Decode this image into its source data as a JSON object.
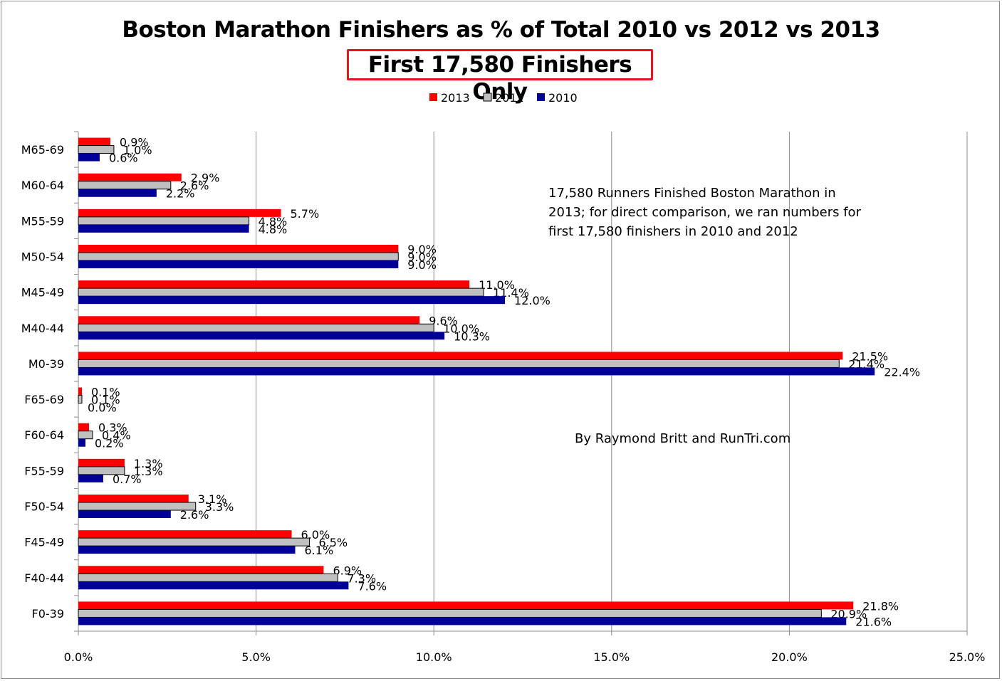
{
  "chart_data": {
    "type": "bar",
    "orientation": "horizontal",
    "title": "Boston Marathon Finishers as % of Total 2010 vs 2012 vs 2013",
    "subtitle": "First 17,580 Finishers Only",
    "categories": [
      "M65-69",
      "M60-64",
      "M55-59",
      "M50-54",
      "M45-49",
      "M40-44",
      "M0-39",
      "F65-69",
      "F60-64",
      "F55-59",
      "F50-54",
      "F45-49",
      "F40-44",
      "F0-39"
    ],
    "series": [
      {
        "name": "2013",
        "color": "#ff0000",
        "values": [
          0.9,
          2.9,
          5.7,
          9.0,
          11.0,
          9.6,
          21.5,
          0.1,
          0.3,
          1.3,
          3.1,
          6.0,
          6.9,
          21.8
        ],
        "labels": [
          "0.9%",
          "2.9%",
          "5.7%",
          "9.0%",
          "11.0%",
          "9.6%",
          "21.5%",
          "0.1%",
          "0.3%",
          "1.3%",
          "3.1%",
          "6.0%",
          "6.9%",
          "21.8%"
        ]
      },
      {
        "name": "2012",
        "color": "#c0c0c0",
        "values": [
          1.0,
          2.6,
          4.8,
          9.0,
          11.4,
          10.0,
          21.4,
          0.1,
          0.4,
          1.3,
          3.3,
          6.5,
          7.3,
          20.9
        ],
        "labels": [
          "1.0%",
          "2.6%",
          "4.8%",
          "9.0%",
          "11.4%",
          "10.0%",
          "21.4%",
          "0.1%",
          "0.4%",
          "1.3%",
          "3.3%",
          "6.5%",
          "7.3%",
          "20.9%"
        ]
      },
      {
        "name": "2010",
        "color": "#000099",
        "values": [
          0.6,
          2.2,
          4.8,
          9.0,
          12.0,
          10.3,
          22.4,
          0.0,
          0.2,
          0.7,
          2.6,
          6.1,
          7.6,
          21.6
        ],
        "labels": [
          "0.6%",
          "2.2%",
          "4.8%",
          "9.0%",
          "12.0%",
          "10.3%",
          "22.4%",
          "0.0%",
          "0.2%",
          "0.7%",
          "2.6%",
          "6.1%",
          "7.6%",
          "21.6%"
        ]
      }
    ],
    "xlim": [
      0,
      25
    ],
    "xticks": [
      0,
      5,
      10,
      15,
      20,
      25
    ],
    "xtick_labels": [
      "0.0%",
      "5.0%",
      "10.0%",
      "15.0%",
      "20.0%",
      "25.0%"
    ],
    "grid": "vertical",
    "legend_position": "top",
    "annotations": [
      "17,580 Runners Finished Boston Marathon in 2013; for direct comparison, we ran numbers for first 17,580 finishers in 2010 and 2012",
      "By Raymond Britt and RunTri.com"
    ]
  }
}
